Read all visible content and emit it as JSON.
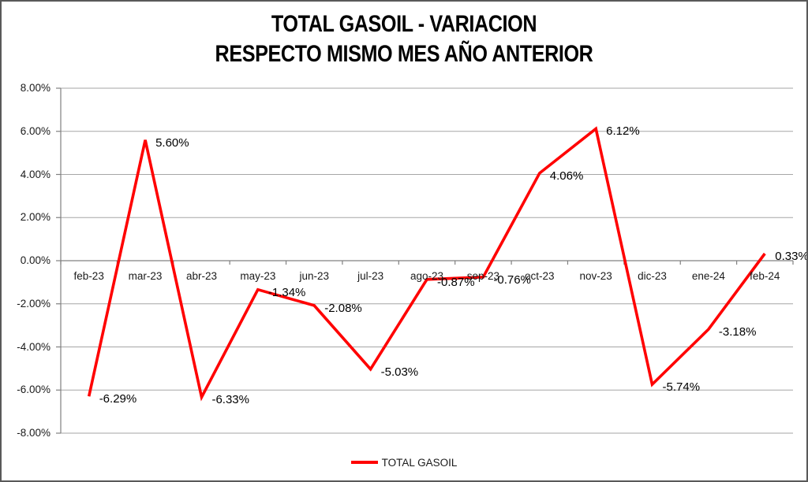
{
  "title": {
    "line1": "TOTAL GASOIL - VARIACION",
    "line2": "RESPECTO MISMO MES AÑO ANTERIOR"
  },
  "legend": {
    "label": "TOTAL GASOIL"
  },
  "colors": {
    "series": "#FF0000",
    "gridline": "#A6A6A6",
    "axis": "#808080",
    "tick": "#808080",
    "axis_text": "#1A1A1A",
    "data_label_text": "#000000",
    "frame_border": "#595959"
  },
  "chart_data": {
    "type": "line",
    "title": "TOTAL GASOIL - VARIACION RESPECTO MISMO MES AÑO ANTERIOR",
    "xlabel": "",
    "ylabel": "",
    "categories": [
      "feb-23",
      "mar-23",
      "abr-23",
      "may-23",
      "jun-23",
      "jul-23",
      "ago-23",
      "sep-23",
      "oct-23",
      "nov-23",
      "dic-23",
      "ene-24",
      "feb-24"
    ],
    "series": [
      {
        "name": "TOTAL GASOIL",
        "values": [
          -6.29,
          5.6,
          -6.33,
          -1.34,
          -2.08,
          -5.03,
          -0.87,
          -0.76,
          4.06,
          6.12,
          -5.74,
          -3.18,
          0.33
        ],
        "data_labels": [
          "-6.29%",
          "5.60%",
          "-6.33%",
          "-1.34%",
          "-2.08%",
          "-5.03%",
          "-0.87%",
          "-0.76%",
          "4.06%",
          "6.12%",
          "-5.74%",
          "-3.18%",
          "0.33%"
        ]
      }
    ],
    "ylim": [
      -8,
      8
    ],
    "ytick_step": 2,
    "ytick_labels": [
      "8.00%",
      "6.00%",
      "4.00%",
      "2.00%",
      "0.00%",
      "-2.00%",
      "-4.00%",
      "-6.00%",
      "-8.00%"
    ],
    "grid": true,
    "legend_position": "bottom"
  }
}
